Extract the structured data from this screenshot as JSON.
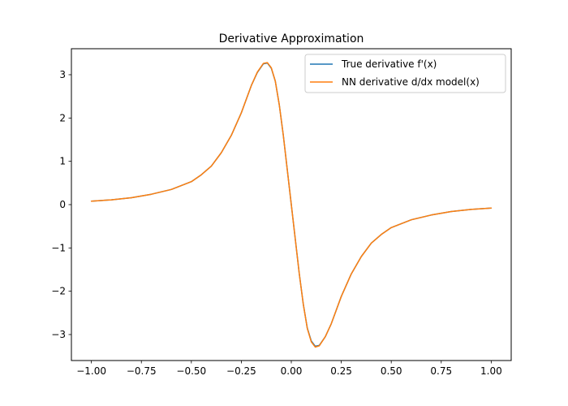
{
  "chart_data": {
    "type": "line",
    "title": "Derivative Approximation",
    "xlabel": "",
    "ylabel": "",
    "xlim": [
      -1.1,
      1.1
    ],
    "ylim": [
      -3.6,
      3.6
    ],
    "xticks": [
      -1.0,
      -0.75,
      -0.5,
      -0.25,
      0.0,
      0.25,
      0.5,
      0.75,
      1.0
    ],
    "xtick_labels": [
      "−1.00",
      "−0.75",
      "−0.50",
      "−0.25",
      "0.00",
      "0.25",
      "0.50",
      "0.75",
      "1.00"
    ],
    "yticks": [
      -3,
      -2,
      -1,
      0,
      1,
      2,
      3
    ],
    "ytick_labels": [
      "−3",
      "−2",
      "−1",
      "0",
      "1",
      "2",
      "3"
    ],
    "grid": false,
    "legend_position": "top-right",
    "x": [
      -1.0,
      -0.9,
      -0.8,
      -0.7,
      -0.6,
      -0.5,
      -0.45,
      -0.4,
      -0.35,
      -0.3,
      -0.25,
      -0.2,
      -0.17,
      -0.14,
      -0.12,
      -0.1,
      -0.08,
      -0.06,
      -0.04,
      -0.02,
      0.0,
      0.02,
      0.04,
      0.06,
      0.08,
      0.1,
      0.12,
      0.14,
      0.17,
      0.2,
      0.25,
      0.3,
      0.35,
      0.4,
      0.45,
      0.5,
      0.6,
      0.7,
      0.8,
      0.9,
      1.0
    ],
    "series": [
      {
        "name": "True derivative f'(x)",
        "color": "#1f77b4",
        "values": [
          0.08,
          0.11,
          0.16,
          0.24,
          0.35,
          0.53,
          0.69,
          0.89,
          1.2,
          1.6,
          2.12,
          2.75,
          3.05,
          3.25,
          3.27,
          3.15,
          2.85,
          2.3,
          1.6,
          0.8,
          0.0,
          -0.8,
          -1.6,
          -2.3,
          -2.85,
          -3.15,
          -3.27,
          -3.25,
          -3.05,
          -2.75,
          -2.12,
          -1.6,
          -1.2,
          -0.89,
          -0.69,
          -0.53,
          -0.35,
          -0.24,
          -0.16,
          -0.11,
          -0.08
        ]
      },
      {
        "name": "NN derivative d/dx model(x)",
        "color": "#ff7f0e",
        "values": [
          0.08,
          0.11,
          0.16,
          0.24,
          0.35,
          0.53,
          0.69,
          0.89,
          1.2,
          1.6,
          2.12,
          2.75,
          3.06,
          3.26,
          3.28,
          3.16,
          2.85,
          2.3,
          1.6,
          0.8,
          0.0,
          -0.8,
          -1.6,
          -2.3,
          -2.86,
          -3.17,
          -3.29,
          -3.26,
          -3.05,
          -2.75,
          -2.12,
          -1.6,
          -1.2,
          -0.89,
          -0.69,
          -0.53,
          -0.35,
          -0.24,
          -0.16,
          -0.11,
          -0.08
        ]
      }
    ]
  }
}
